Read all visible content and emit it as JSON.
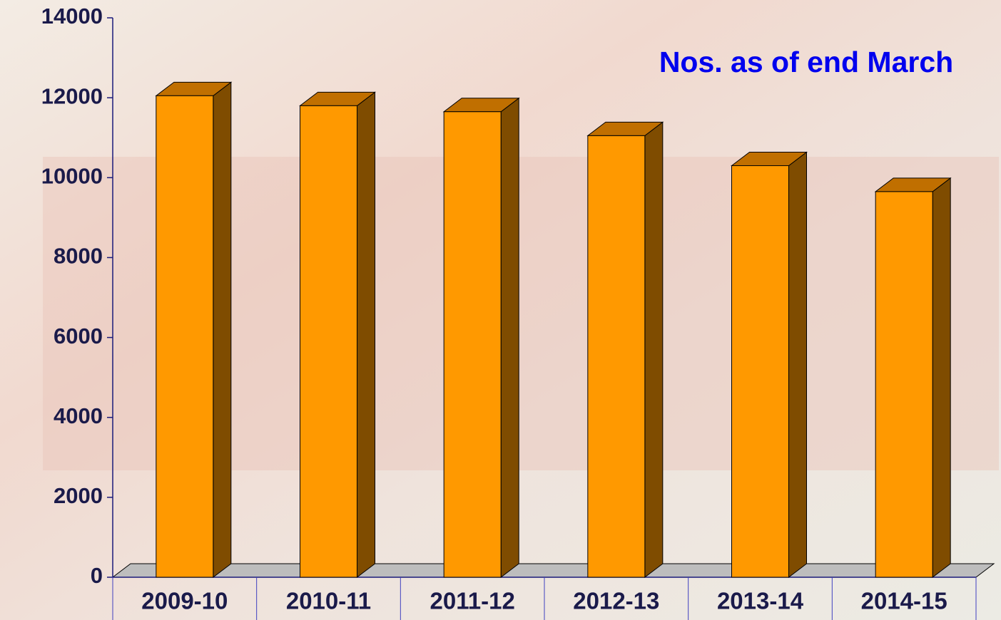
{
  "chart_data": {
    "type": "bar3d",
    "annotation": "Nos. as of end March",
    "categories": [
      "2009-10",
      "2010-11",
      "2011-12",
      "2012-13",
      "2013-14",
      "2014-15"
    ],
    "values": [
      12050,
      11800,
      11650,
      11050,
      10300,
      9650
    ],
    "color": "#ff9900",
    "ylim": [
      0,
      14000
    ],
    "yticks": [
      0,
      2000,
      4000,
      6000,
      8000,
      10000,
      12000,
      14000
    ]
  }
}
